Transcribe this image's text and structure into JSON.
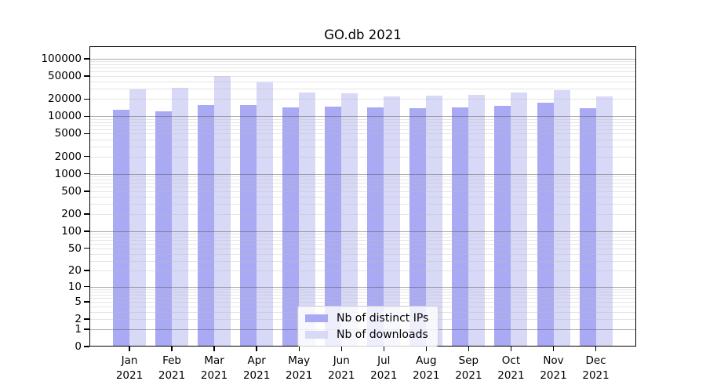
{
  "chart_data": {
    "type": "bar",
    "title": "GO.db 2021",
    "categories": [
      {
        "month": "Jan",
        "year": "2021"
      },
      {
        "month": "Feb",
        "year": "2021"
      },
      {
        "month": "Mar",
        "year": "2021"
      },
      {
        "month": "Apr",
        "year": "2021"
      },
      {
        "month": "May",
        "year": "2021"
      },
      {
        "month": "Jun",
        "year": "2021"
      },
      {
        "month": "Jul",
        "year": "2021"
      },
      {
        "month": "Aug",
        "year": "2021"
      },
      {
        "month": "Sep",
        "year": "2021"
      },
      {
        "month": "Oct",
        "year": "2021"
      },
      {
        "month": "Nov",
        "year": "2021"
      },
      {
        "month": "Dec",
        "year": "2021"
      }
    ],
    "series": [
      {
        "name": "Nb of distinct IPs",
        "color": "#a9a9f4",
        "values": [
          13000,
          12100,
          15800,
          15500,
          14400,
          14700,
          14100,
          13700,
          14300,
          15400,
          17100,
          14000
        ]
      },
      {
        "name": "Nb of downloads",
        "color": "#d8d8f7",
        "values": [
          29100,
          31600,
          50100,
          39000,
          25700,
          25100,
          22400,
          23100,
          23900,
          25700,
          28400,
          22400
        ]
      }
    ],
    "yscale": "log1p",
    "ylim": [
      0,
      165000
    ],
    "yticks": [
      100000,
      50000,
      20000,
      10000,
      5000,
      2000,
      1000,
      500,
      200,
      100,
      50,
      20,
      10,
      5,
      2,
      1,
      0
    ],
    "major_grid_values": [
      1,
      10,
      100,
      1000,
      10000,
      100000
    ],
    "grid": {
      "major_color": "rgba(90,90,90,0.5)",
      "minor_color": "rgba(190,190,190,0.4)"
    },
    "axis_color": "#000000",
    "background_color": "#ffffff",
    "legend_position": "lower center",
    "xlabel": "",
    "ylabel": ""
  }
}
